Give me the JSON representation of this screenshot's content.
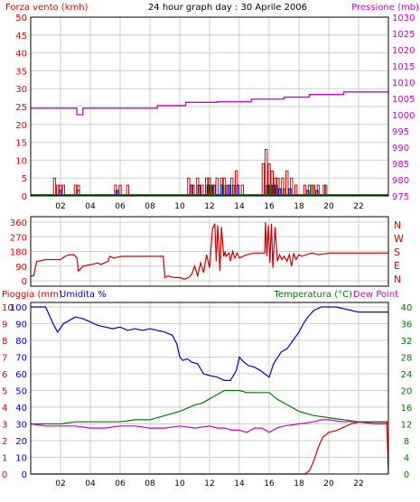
{
  "colors": {
    "frame": "#000000",
    "grid": "#cfcfcf",
    "red": "#e00000",
    "magenta": "#cc00cc",
    "blue": "#0000cc",
    "green": "#007700",
    "darkred": "#cc0000"
  },
  "header": {
    "left_label": "Forza vento (kmh)",
    "title": "24 hour graph day : 30 Aprile 2006",
    "right_label": "Pressione (mb)"
  },
  "x_ticks": [
    "02",
    "04",
    "06",
    "08",
    "10",
    "12",
    "14",
    "16",
    "18",
    "20",
    "22"
  ],
  "chart_data": [
    {
      "type": "bar",
      "name": "wind_and_pressure",
      "x_range": [
        0,
        24
      ],
      "y_left": {
        "label": "Forza vento (kmh)",
        "ylim": [
          0,
          50
        ],
        "ticks": [
          0,
          5,
          10,
          15,
          20,
          25,
          30,
          35,
          40,
          45,
          50
        ]
      },
      "y_right": {
        "label": "Pressione (mb)",
        "ylim": [
          975,
          1030
        ],
        "ticks": [
          975,
          980,
          985,
          990,
          995,
          1000,
          1005,
          1010,
          1015,
          1020,
          1025,
          1030
        ]
      },
      "grid": true,
      "series": [
        {
          "name": "wind_gust",
          "style": "bars",
          "color": "#e00000",
          "x": [
            1.6,
            1.8,
            2.0,
            2.2,
            3.0,
            3.2,
            5.7,
            6.0,
            6.5,
            10.6,
            10.9,
            11.2,
            11.5,
            11.8,
            12.0,
            12.2,
            12.5,
            12.8,
            13.0,
            13.2,
            13.5,
            13.8,
            14.2,
            15.6,
            15.8,
            16.0,
            16.2,
            16.4,
            16.6,
            16.9,
            17.2,
            17.5,
            17.8,
            18.4,
            18.7,
            19.0,
            19.3,
            19.7
          ],
          "values": [
            5,
            3,
            3,
            3,
            3,
            3,
            3,
            3,
            3,
            5,
            3,
            5,
            3,
            5,
            5,
            3,
            5,
            5,
            5,
            3,
            5,
            7,
            3,
            9,
            13,
            9,
            7,
            5,
            5,
            5,
            7,
            5,
            3,
            3,
            3,
            3,
            3,
            3
          ]
        },
        {
          "name": "wind_speed",
          "style": "bars",
          "color": "#0000cc",
          "x": [
            2.0,
            3.2,
            5.8,
            10.8,
            11.3,
            11.9,
            12.3,
            12.8,
            13.3,
            13.9,
            15.9,
            16.3,
            16.7,
            17.4,
            18.6,
            19.2
          ],
          "values": [
            1.5,
            1.5,
            1.5,
            3,
            3,
            3,
            3,
            3,
            3,
            3,
            3,
            3,
            2,
            2,
            1.5,
            1.5
          ]
        },
        {
          "name": "wind_avg",
          "style": "bars",
          "color": "#007700",
          "x": [
            12.1,
            12.9,
            13.6,
            16.1,
            16.5,
            17.0,
            18.9,
            19.8
          ],
          "values": [
            3,
            3,
            3,
            3,
            3,
            2,
            3,
            3
          ]
        },
        {
          "name": "pressione",
          "style": "step",
          "color": "#cc00cc",
          "axis": "right",
          "x": [
            0,
            3.1,
            3.5,
            8.5,
            10.4,
            12.5,
            14.8,
            17.0,
            18.7,
            21.0,
            24
          ],
          "values": [
            1002,
            1000,
            1002,
            1002.8,
            1003.8,
            1004,
            1004.8,
            1005.4,
            1006.2,
            1007,
            1007
          ]
        }
      ]
    },
    {
      "type": "line",
      "name": "wind_direction",
      "x_range": [
        0,
        24
      ],
      "y_left": {
        "ylim": [
          0,
          360
        ],
        "ticks": [
          0,
          90,
          180,
          270,
          360
        ]
      },
      "y_right": {
        "ticks": [
          "N",
          "E",
          "S",
          "W",
          "N"
        ]
      },
      "grid": true,
      "series": [
        {
          "name": "direzione",
          "color": "#cc0000",
          "x": [
            0,
            0.2,
            0.4,
            0.5,
            1.0,
            2.0,
            2.3,
            2.6,
            2.9,
            3.1,
            3.2,
            3.5,
            4.1,
            4.5,
            4.7,
            5.2,
            5.3,
            5.6,
            6.1,
            6.6,
            7.1,
            7.6,
            8.1,
            8.5,
            8.9,
            9.0,
            9.2,
            9.6,
            10.0,
            10.3,
            10.6,
            10.8,
            11.0,
            11.2,
            11.4,
            11.6,
            11.8,
            12.0,
            12.1,
            12.2,
            12.35,
            12.45,
            12.55,
            12.7,
            12.8,
            12.95,
            13.05,
            13.1,
            13.3,
            13.4,
            13.55,
            13.7,
            13.85,
            14.0,
            14.5,
            15.0,
            15.5,
            15.7,
            15.75,
            15.85,
            15.95,
            16.05,
            16.15,
            16.25,
            16.4,
            16.55,
            16.7,
            16.85,
            17.0,
            17.2,
            17.35,
            17.5,
            17.65,
            17.8,
            18.0,
            18.2,
            18.5,
            18.9,
            19.3,
            20.0,
            21.0,
            22.0,
            23.0,
            24.0
          ],
          "values": [
            30,
            30,
            120,
            120,
            130,
            130,
            150,
            160,
            160,
            140,
            60,
            90,
            100,
            110,
            100,
            120,
            150,
            140,
            150,
            150,
            150,
            150,
            150,
            150,
            150,
            20,
            30,
            20,
            20,
            10,
            20,
            40,
            90,
            30,
            110,
            50,
            160,
            80,
            200,
            320,
            350,
            120,
            340,
            60,
            330,
            150,
            180,
            150,
            170,
            120,
            180,
            140,
            170,
            140,
            160,
            170,
            170,
            170,
            360,
            150,
            340,
            110,
            350,
            80,
            330,
            120,
            160,
            130,
            150,
            120,
            160,
            90,
            170,
            130,
            160,
            150,
            160,
            170,
            160,
            170,
            170,
            170,
            170,
            170
          ]
        }
      ]
    },
    {
      "type": "line",
      "name": "rain_humidity_temperature",
      "x_range": [
        0,
        24
      ],
      "y_left_outer": {
        "label": "Pioggia (mm)",
        "ylim": [
          0,
          10
        ],
        "ticks": [
          0,
          1,
          2,
          3,
          4,
          5,
          6,
          7,
          8,
          9,
          10
        ]
      },
      "y_left_inner": {
        "label": "Umidita %",
        "ylim": [
          0,
          100
        ],
        "ticks": [
          0,
          10,
          20,
          30,
          40,
          50,
          60,
          70,
          80,
          90,
          100
        ]
      },
      "y_right": {
        "label": "Temperatura (°C)",
        "ylim": [
          0,
          40
        ],
        "ticks": [
          0,
          4,
          8,
          12,
          16,
          20,
          24,
          28,
          32,
          36,
          40
        ]
      },
      "extra_label": "Dew Point",
      "grid": true,
      "series": [
        {
          "name": "umidita",
          "color": "#0000cc",
          "axis": "inner",
          "x": [
            0,
            1.0,
            1.5,
            1.8,
            2.2,
            2.6,
            3.0,
            3.5,
            4.0,
            4.5,
            5.0,
            5.5,
            6.0,
            6.5,
            7.0,
            7.5,
            8.0,
            8.5,
            9.0,
            9.5,
            9.8,
            10.0,
            10.2,
            10.5,
            10.8,
            11.2,
            11.6,
            12.0,
            12.5,
            13.0,
            13.4,
            13.8,
            14.0,
            14.3,
            14.6,
            15.0,
            15.4,
            15.7,
            16.0,
            16.3,
            16.8,
            17.2,
            17.6,
            18.0,
            18.3,
            18.6,
            19.0,
            19.5,
            20.0,
            20.5,
            21.0,
            22.0,
            23.0,
            24.0
          ],
          "values": [
            100,
            100,
            90,
            85,
            90,
            92,
            94,
            93,
            91,
            89,
            88,
            87,
            88,
            86,
            87,
            86,
            87,
            86,
            85,
            83,
            78,
            70,
            68,
            69,
            67,
            66,
            60,
            59,
            58,
            56,
            56,
            62,
            70,
            67,
            65,
            64,
            62,
            60,
            58,
            66,
            73,
            75,
            80,
            85,
            90,
            94,
            98,
            100,
            100,
            100,
            99,
            97,
            97,
            97
          ]
        },
        {
          "name": "temperatura",
          "color": "#007700",
          "axis": "right",
          "x": [
            0,
            1,
            2,
            3,
            4,
            5,
            6,
            7,
            8,
            9,
            10,
            11,
            11.5,
            12,
            12.5,
            13,
            13.5,
            14,
            14.5,
            15,
            15.5,
            16,
            16.5,
            17,
            17.5,
            18,
            18.5,
            19,
            20,
            21,
            22,
            23,
            24
          ],
          "values": [
            12,
            12,
            12,
            12.5,
            12.5,
            12.5,
            12.5,
            13,
            13,
            14,
            15,
            16.5,
            17,
            18,
            19,
            20,
            20,
            20,
            19.5,
            19.5,
            19.5,
            19.5,
            18,
            17,
            16,
            15,
            14.5,
            14,
            13.5,
            13,
            12.5,
            12.5,
            12.5
          ]
        },
        {
          "name": "dew_point",
          "color": "#cc00cc",
          "axis": "right",
          "x": [
            0,
            1,
            2,
            3,
            4,
            5,
            6,
            7,
            8,
            9,
            10,
            11,
            12,
            12.5,
            13,
            13.5,
            14,
            14.5,
            15,
            15.5,
            16,
            16.5,
            17,
            18,
            19,
            19.5,
            20,
            21,
            22,
            23,
            24
          ],
          "values": [
            12,
            11.5,
            11.5,
            11.5,
            11,
            11,
            11.5,
            11.5,
            11,
            11,
            11.5,
            11,
            11.5,
            11,
            11,
            10.5,
            10.5,
            10,
            11,
            11,
            10,
            11,
            11.5,
            12,
            12.5,
            13,
            13,
            12.5,
            12.5,
            12,
            12
          ]
        },
        {
          "name": "pioggia",
          "color": "#e00000",
          "axis": "outer",
          "x": [
            0,
            17.5,
            18.0,
            18.4,
            18.7,
            19.0,
            19.3,
            19.6,
            20.0,
            20.5,
            21.0,
            21.5,
            22.0,
            22.5,
            23.0,
            23.9,
            24.0
          ],
          "values": [
            0,
            0,
            0,
            0,
            0.2,
            0.8,
            1.6,
            2.2,
            2.5,
            2.6,
            2.8,
            3.0,
            3.1,
            3.1,
            3.1,
            3.1,
            0
          ]
        }
      ]
    }
  ]
}
